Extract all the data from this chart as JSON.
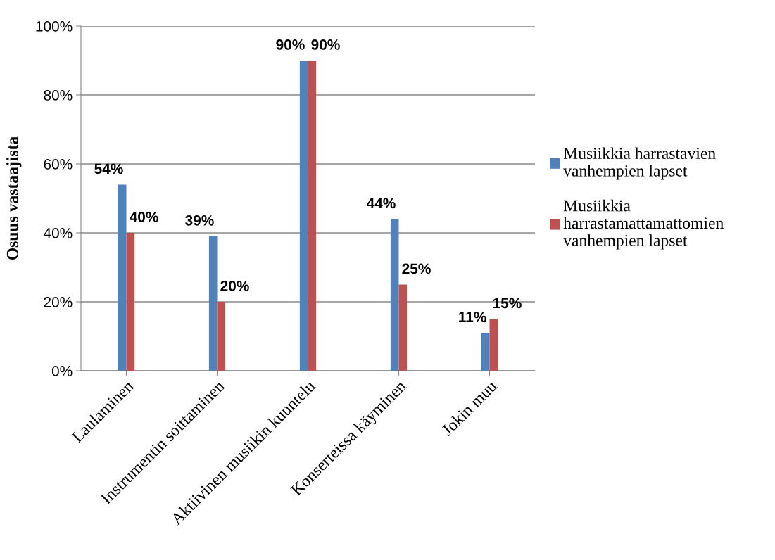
{
  "chart_data": {
    "type": "bar",
    "ylabel": "Osuus vastaajista",
    "categories": [
      "Laulaminen",
      "Instrumentin soittaminen",
      "Aktiivinen musiikin kuuntelu",
      "Konserteissa käyminen",
      "Jokin muu"
    ],
    "series": [
      {
        "name": "Musiikkia harrastavien vanhempien lapset",
        "color": "#4f81bd",
        "values": [
          54,
          39,
          90,
          44,
          11
        ],
        "value_labels": [
          "54%",
          "39%",
          "90%",
          "44%",
          "11%"
        ]
      },
      {
        "name": "Musiikkia harrastamattamattomien vanhempien lapset",
        "color": "#c0504d",
        "values": [
          40,
          20,
          90,
          25,
          15
        ],
        "value_labels": [
          "40%",
          "20%",
          "90%",
          "25%",
          "15%"
        ]
      }
    ],
    "ylim": [
      0,
      100
    ],
    "yticks": [
      {
        "value": 0,
        "label": "0%"
      },
      {
        "value": 20,
        "label": "20%"
      },
      {
        "value": 40,
        "label": "40%"
      },
      {
        "value": 60,
        "label": "60%"
      },
      {
        "value": 80,
        "label": "80%"
      },
      {
        "value": 100,
        "label": "100%"
      }
    ],
    "grid": "y",
    "legend": "right"
  }
}
